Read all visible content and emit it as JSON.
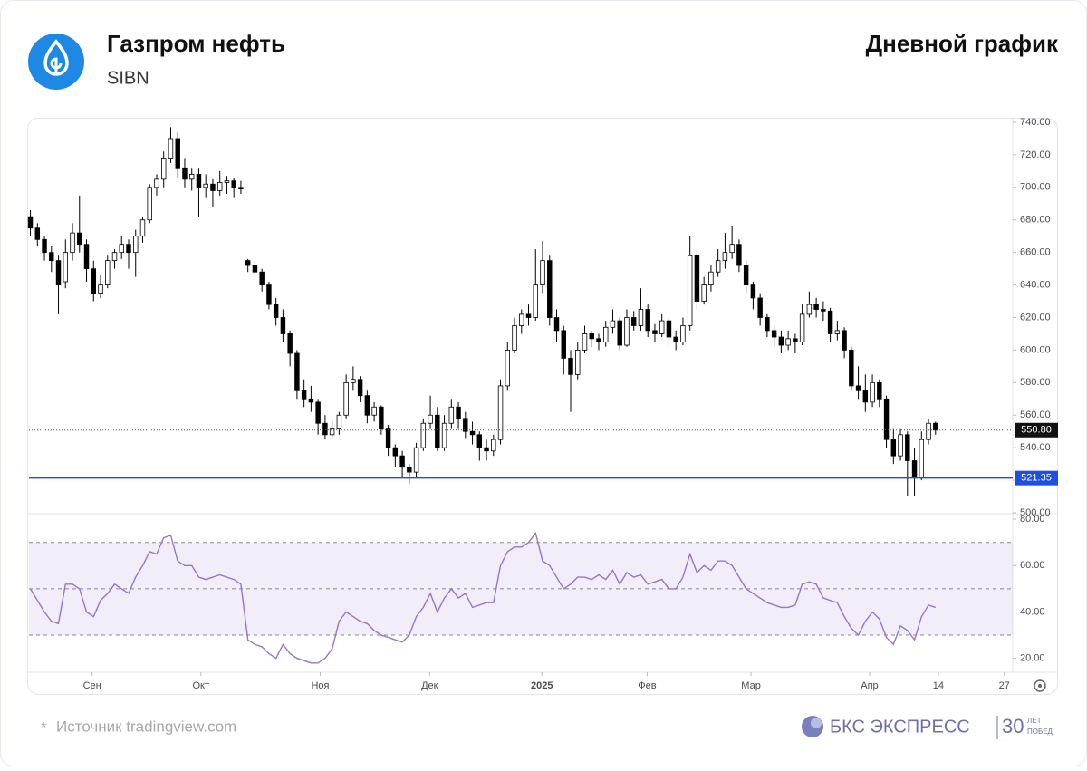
{
  "header": {
    "title": "Газпром нефть",
    "ticker": "SIBN",
    "chart_kind": "Дневной график"
  },
  "footer": {
    "asterisk": "*",
    "source": "Источник tradingview.com",
    "brand": "БКС ЭКСПРЕСС",
    "anniversary": "30",
    "anniversary_top": "ЛЕТ",
    "anniversary_bottom": "ПОБЕД"
  },
  "chart_data": [
    {
      "type": "candlestick",
      "up_color": "#ffffff",
      "down_color": "#000000",
      "grid": false,
      "xlim": [
        -0.2,
        140
      ],
      "ylim": [
        500,
        740
      ],
      "yticks": [
        {
          "value": 500,
          "label": "500.00"
        },
        {
          "value": 520,
          "label": "520.00"
        },
        {
          "value": 540,
          "label": "540.00"
        },
        {
          "value": 560,
          "label": "560.00"
        },
        {
          "value": 580,
          "label": "580.00"
        },
        {
          "value": 600,
          "label": "600.00"
        },
        {
          "value": 620,
          "label": "620.00"
        },
        {
          "value": 640,
          "label": "640.00"
        },
        {
          "value": 660,
          "label": "660.00"
        },
        {
          "value": 680,
          "label": "680.00"
        },
        {
          "value": 700,
          "label": "700.00"
        },
        {
          "value": 720,
          "label": "720.00"
        },
        {
          "value": 740,
          "label": "740.00"
        }
      ],
      "level": {
        "value": 521.35,
        "color": "#1f4fe0"
      },
      "last_price": {
        "value": 550.8,
        "label": "550.80"
      },
      "ohlc": [
        [
          682,
          686,
          670,
          675
        ],
        [
          675,
          678,
          664,
          668
        ],
        [
          668,
          670,
          655,
          660
        ],
        [
          660,
          664,
          648,
          655
        ],
        [
          655,
          658,
          622,
          640
        ],
        [
          642,
          668,
          638,
          660
        ],
        [
          660,
          678,
          655,
          672
        ],
        [
          672,
          695,
          660,
          665
        ],
        [
          665,
          668,
          642,
          650
        ],
        [
          650,
          655,
          630,
          635
        ],
        [
          635,
          646,
          632,
          640
        ],
        [
          640,
          658,
          638,
          655
        ],
        [
          655,
          662,
          650,
          660
        ],
        [
          660,
          670,
          656,
          665
        ],
        [
          665,
          668,
          650,
          660
        ],
        [
          660,
          674,
          645,
          670
        ],
        [
          670,
          682,
          666,
          680
        ],
        [
          680,
          702,
          678,
          700
        ],
        [
          700,
          708,
          695,
          705
        ],
        [
          705,
          722,
          700,
          718
        ],
        [
          718,
          737,
          715,
          730
        ],
        [
          730,
          734,
          706,
          712
        ],
        [
          712,
          718,
          700,
          705
        ],
        [
          705,
          712,
          698,
          708
        ],
        [
          708,
          712,
          682,
          700
        ],
        [
          700,
          708,
          694,
          702
        ],
        [
          702,
          705,
          688,
          698
        ],
        [
          698,
          710,
          695,
          703
        ],
        [
          703,
          707,
          696,
          704
        ],
        [
          704,
          706,
          694,
          700
        ],
        [
          700,
          704,
          696,
          699
        ],
        [
          655,
          656,
          648,
          652
        ],
        [
          652,
          655,
          645,
          648
        ],
        [
          648,
          650,
          636,
          640
        ],
        [
          640,
          642,
          625,
          628
        ],
        [
          628,
          632,
          615,
          620
        ],
        [
          620,
          625,
          605,
          610
        ],
        [
          610,
          612,
          590,
          598
        ],
        [
          598,
          600,
          570,
          575
        ],
        [
          575,
          582,
          565,
          570
        ],
        [
          570,
          578,
          562,
          568
        ],
        [
          568,
          570,
          548,
          555
        ],
        [
          555,
          560,
          545,
          548
        ],
        [
          548,
          556,
          545,
          552
        ],
        [
          552,
          562,
          548,
          560
        ],
        [
          560,
          585,
          558,
          580
        ],
        [
          580,
          590,
          575,
          582
        ],
        [
          582,
          584,
          568,
          572
        ],
        [
          572,
          575,
          555,
          560
        ],
        [
          560,
          568,
          556,
          565
        ],
        [
          565,
          566,
          548,
          552
        ],
        [
          552,
          554,
          535,
          540
        ],
        [
          540,
          542,
          528,
          535
        ],
        [
          535,
          538,
          522,
          528
        ],
        [
          528,
          530,
          518,
          525
        ],
        [
          525,
          543,
          522,
          540
        ],
        [
          540,
          558,
          538,
          555
        ],
        [
          555,
          572,
          552,
          560
        ],
        [
          560,
          565,
          538,
          540
        ],
        [
          540,
          560,
          538,
          555
        ],
        [
          555,
          570,
          552,
          565
        ],
        [
          565,
          568,
          552,
          558
        ],
        [
          558,
          562,
          546,
          550
        ],
        [
          550,
          556,
          542,
          548
        ],
        [
          548,
          550,
          532,
          540
        ],
        [
          540,
          545,
          532,
          538
        ],
        [
          538,
          548,
          535,
          545
        ],
        [
          545,
          582,
          542,
          578
        ],
        [
          578,
          605,
          575,
          600
        ],
        [
          600,
          620,
          598,
          615
        ],
        [
          615,
          625,
          610,
          622
        ],
        [
          622,
          628,
          615,
          620
        ],
        [
          620,
          662,
          618,
          640
        ],
        [
          640,
          667,
          635,
          655
        ],
        [
          655,
          658,
          615,
          620
        ],
        [
          620,
          625,
          605,
          612
        ],
        [
          612,
          615,
          585,
          595
        ],
        [
          595,
          600,
          562,
          585
        ],
        [
          585,
          605,
          582,
          600
        ],
        [
          600,
          615,
          598,
          610
        ],
        [
          610,
          612,
          602,
          607
        ],
        [
          607,
          610,
          600,
          605
        ],
        [
          605,
          618,
          602,
          614
        ],
        [
          614,
          625,
          610,
          618
        ],
        [
          618,
          620,
          600,
          603
        ],
        [
          603,
          625,
          602,
          620
        ],
        [
          620,
          624,
          612,
          615
        ],
        [
          615,
          638,
          612,
          625
        ],
        [
          625,
          628,
          608,
          612
        ],
        [
          612,
          616,
          605,
          610
        ],
        [
          610,
          622,
          608,
          618
        ],
        [
          618,
          620,
          603,
          608
        ],
        [
          608,
          612,
          600,
          605
        ],
        [
          605,
          620,
          603,
          615
        ],
        [
          615,
          670,
          612,
          658
        ],
        [
          658,
          662,
          625,
          630
        ],
        [
          630,
          645,
          628,
          640
        ],
        [
          640,
          652,
          636,
          648
        ],
        [
          648,
          662,
          645,
          655
        ],
        [
          655,
          672,
          650,
          660
        ],
        [
          660,
          676,
          656,
          665
        ],
        [
          665,
          668,
          648,
          652
        ],
        [
          652,
          655,
          635,
          640
        ],
        [
          640,
          642,
          625,
          632
        ],
        [
          632,
          635,
          615,
          620
        ],
        [
          620,
          622,
          608,
          612
        ],
        [
          612,
          615,
          602,
          608
        ],
        [
          608,
          612,
          598,
          603
        ],
        [
          603,
          612,
          600,
          607
        ],
        [
          607,
          610,
          598,
          605
        ],
        [
          605,
          628,
          603,
          622
        ],
        [
          622,
          636,
          620,
          628
        ],
        [
          628,
          632,
          620,
          625
        ],
        [
          625,
          630,
          618,
          624
        ],
        [
          624,
          626,
          605,
          610
        ],
        [
          610,
          618,
          606,
          612
        ],
        [
          612,
          614,
          595,
          600
        ],
        [
          600,
          602,
          575,
          578
        ],
        [
          578,
          590,
          570,
          575
        ],
        [
          575,
          585,
          562,
          568
        ],
        [
          568,
          585,
          565,
          580
        ],
        [
          580,
          582,
          565,
          570
        ],
        [
          570,
          572,
          540,
          545
        ],
        [
          545,
          552,
          530,
          535
        ],
        [
          535,
          552,
          532,
          548
        ],
        [
          548,
          550,
          510,
          532
        ],
        [
          532,
          540,
          510,
          522
        ],
        [
          522,
          550,
          520,
          545
        ],
        [
          545,
          558,
          542,
          555
        ],
        [
          555,
          556,
          548,
          550.8
        ]
      ]
    },
    {
      "type": "line",
      "color": "#9575cd",
      "band_color": "#7e57c2",
      "bands": [
        30,
        50,
        70
      ],
      "xlim": [
        -0.2,
        140
      ],
      "xticks": [
        {
          "value": 8.8,
          "label": "Сен"
        },
        {
          "value": 24.3,
          "label": "Окт"
        },
        {
          "value": 41.3,
          "label": "Ноя"
        },
        {
          "value": 56.9,
          "label": "Дек"
        },
        {
          "value": 72.9,
          "label": "2025"
        },
        {
          "value": 87.9,
          "label": "Фев"
        },
        {
          "value": 102.7,
          "label": "Мар"
        },
        {
          "value": 119.6,
          "label": "Апр"
        },
        {
          "value": 129.4,
          "label": "14"
        },
        {
          "value": 138.8,
          "label": "27"
        }
      ],
      "ylim": [
        14,
        82
      ],
      "yticks": [
        {
          "value": 20,
          "label": "20.00"
        },
        {
          "value": 40,
          "label": "40.00"
        },
        {
          "value": 60,
          "label": "60.00"
        },
        {
          "value": 80,
          "label": "80.00"
        }
      ],
      "values": [
        50,
        45,
        40,
        36,
        35,
        52,
        52,
        50,
        40,
        38,
        45,
        48,
        52,
        50,
        48,
        55,
        60,
        66,
        65,
        72,
        73,
        62,
        60,
        60,
        55,
        54,
        55,
        56,
        55,
        54,
        52,
        28,
        26,
        25,
        22,
        20,
        26,
        22,
        20,
        19,
        18,
        18,
        20,
        24,
        36,
        40,
        38,
        36,
        35,
        32,
        30,
        29,
        28,
        27,
        30,
        38,
        42,
        48,
        40,
        46,
        50,
        46,
        48,
        42,
        43,
        44,
        44,
        60,
        66,
        68,
        68,
        70,
        74,
        62,
        60,
        55,
        50,
        52,
        55,
        55,
        54,
        56,
        54,
        58,
        52,
        57,
        55,
        56,
        52,
        53,
        54,
        50,
        50,
        55,
        65,
        57,
        60,
        58,
        62,
        62,
        60,
        55,
        50,
        48,
        46,
        44,
        43,
        42,
        42,
        43,
        52,
        53,
        52,
        46,
        45,
        44,
        38,
        33,
        30,
        36,
        40,
        37,
        29,
        26,
        34,
        32,
        28,
        38,
        43,
        42
      ]
    }
  ]
}
